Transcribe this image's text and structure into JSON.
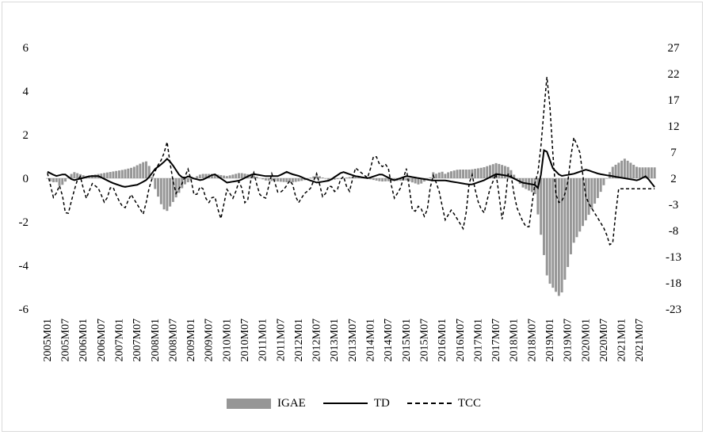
{
  "chart_data": {
    "type": "bar+line",
    "title": "",
    "xlabel": "",
    "ylabel": "",
    "ylim_left": [
      -6,
      6
    ],
    "ylim_right": [
      -23,
      27
    ],
    "yticks_left": [
      "6",
      "4",
      "2",
      "0",
      "-2",
      "-4",
      "-6"
    ],
    "yticks_right": [
      "27",
      "22",
      "17",
      "12",
      "7",
      "2",
      "-3",
      "-8",
      "-13",
      "-18",
      "-23"
    ],
    "xtick_labels": [
      "2005M01",
      "2005M07",
      "2006M01",
      "2006M07",
      "2007M01",
      "2007M07",
      "2008M01",
      "2008M07",
      "2009M01",
      "2009M07",
      "2010M01",
      "2010M07",
      "2011M01",
      "2011M07",
      "2012M01",
      "2012M07",
      "2013M01",
      "2013M07",
      "2014M01",
      "2014M07",
      "2015M01",
      "2015M07",
      "2016M01",
      "2016M07",
      "2017M01",
      "2017M07",
      "2018M01",
      "2018M07",
      "2019M01",
      "2019M07",
      "2020M01",
      "2020M07",
      "2021M01",
      "2021M07"
    ],
    "grid": false,
    "legend_position": "bottom",
    "series": [
      {
        "name": "IGAE",
        "axis": "left",
        "kind": "bar",
        "color": "#969696",
        "knots_month_index": [
          0,
          2,
          4,
          6,
          8,
          12,
          18,
          24,
          30,
          36,
          40,
          44,
          46,
          48,
          50,
          52,
          54,
          56,
          58,
          60,
          64,
          70,
          72,
          78,
          84,
          90,
          96,
          102,
          108,
          114,
          120,
          126,
          132,
          144,
          156,
          168,
          174,
          180,
          186,
          192,
          198,
          204,
          210,
          216,
          222,
          228,
          234,
          240,
          246,
          258,
          264,
          270,
          276,
          180,
          182,
          184,
          186,
          188
        ],
        "values": [
          0,
          -0.2,
          -0.15,
          -0.4,
          -0.2,
          0.3,
          0.1,
          0.2,
          0.3,
          0.4,
          0.5,
          0.7,
          0.8,
          0.5,
          -0.4,
          -0.9,
          -1.4,
          -1.5,
          -1.2,
          -0.9,
          -0.3,
          0.1,
          0.2,
          0.2,
          0.1,
          0.25,
          0.15,
          -0.1,
          -0.15,
          -0.2,
          -0.1,
          0.15,
          -0.1,
          0.1,
          -0.15,
          -0.1,
          -0.3,
          0.1,
          0.3,
          0.4,
          0.4,
          0.5,
          0.7,
          0.5,
          -0.4,
          -0.7,
          -4.7,
          -5.5,
          -3.0,
          -0.8,
          0.5,
          0.9,
          0.5,
          0.3,
          0.2,
          0.3,
          0.2,
          0.3
        ]
      },
      {
        "name": "TD",
        "axis": "left",
        "kind": "line",
        "color": "#000000",
        "knots_month_index": [
          0,
          4,
          8,
          12,
          16,
          20,
          24,
          30,
          36,
          42,
          46,
          48,
          50,
          54,
          56,
          58,
          60,
          62,
          64,
          66,
          68,
          72,
          78,
          84,
          90,
          96,
          102,
          108,
          112,
          114,
          118,
          120,
          126,
          132,
          138,
          144,
          150,
          156,
          162,
          168,
          174,
          180,
          186,
          192,
          198,
          204,
          210,
          216,
          222,
          228,
          230,
          231,
          232,
          234,
          236,
          240,
          246,
          252,
          258,
          264,
          270,
          276,
          280,
          284
        ],
        "values": [
          0.3,
          0.1,
          0.2,
          -0.1,
          0,
          0.1,
          0.1,
          -0.2,
          -0.4,
          -0.3,
          -0.1,
          0.1,
          0.4,
          0.7,
          0.9,
          0.7,
          0.4,
          0.1,
          0,
          0.1,
          0,
          -0.1,
          0.2,
          -0.2,
          -0.1,
          0.2,
          0.1,
          0.1,
          0.3,
          0.2,
          0.1,
          0,
          -0.2,
          -0.1,
          0.3,
          0.1,
          0,
          0.2,
          -0.1,
          0.1,
          0,
          -0.1,
          -0.1,
          -0.2,
          -0.3,
          -0.1,
          0.2,
          0.1,
          -0.2,
          -0.3,
          -0.5,
          0.3,
          1.3,
          1.2,
          0.5,
          0.1,
          0.2,
          0.4,
          0.2,
          0.1,
          0,
          -0.1,
          0.1,
          -0.4
        ]
      },
      {
        "name": "TCC",
        "axis": "right",
        "kind": "dashed-line",
        "color": "#000000",
        "knots_month_index": [
          0,
          3,
          6,
          9,
          12,
          15,
          18,
          21,
          24,
          27,
          30,
          33,
          36,
          39,
          42,
          45,
          48,
          51,
          54,
          56,
          58,
          60,
          63,
          66,
          69,
          72,
          75,
          78,
          81,
          84,
          87,
          90,
          93,
          96,
          99,
          102,
          105,
          108,
          111,
          114,
          117,
          120,
          123,
          126,
          129,
          132,
          135,
          138,
          141,
          144,
          147,
          150,
          153,
          156,
          159,
          162,
          165,
          168,
          171,
          174,
          177,
          180,
          183,
          186,
          189,
          192,
          195,
          198,
          201,
          204,
          207,
          210,
          213,
          216,
          219,
          222,
          225,
          228,
          230,
          232,
          234,
          236,
          238,
          240,
          243,
          246,
          249,
          252,
          255,
          258,
          261,
          264,
          267,
          270,
          273,
          276,
          279,
          282,
          284
        ],
        "values": [
          3,
          -2,
          1,
          -6,
          -1,
          3,
          -2,
          1,
          0,
          -3,
          1,
          -2,
          -4,
          -1,
          -3,
          -5,
          1,
          4,
          6,
          9,
          3,
          -1,
          1,
          4,
          -2,
          1,
          -3,
          -1,
          -6,
          0,
          -2,
          2,
          -4,
          4,
          -1,
          -2,
          3,
          -1,
          0,
          2,
          -3,
          -1,
          0,
          3,
          -2,
          1,
          -1,
          3,
          -1,
          4,
          3,
          2,
          7,
          4,
          5,
          -2,
          0,
          4,
          -5,
          -3,
          -6,
          3,
          0,
          -6,
          -4,
          -6,
          -8,
          4,
          -2,
          -5,
          0,
          3,
          -7,
          5,
          -3,
          -6,
          -8,
          1,
          4,
          14,
          23,
          9,
          -2,
          -3,
          0,
          10,
          7,
          -2,
          -4,
          -6,
          -8,
          -12,
          0,
          0,
          0,
          0,
          0,
          0,
          0
        ]
      }
    ]
  },
  "legend": {
    "igae": "IGAE",
    "td": "TD",
    "tcc": "TCC"
  }
}
